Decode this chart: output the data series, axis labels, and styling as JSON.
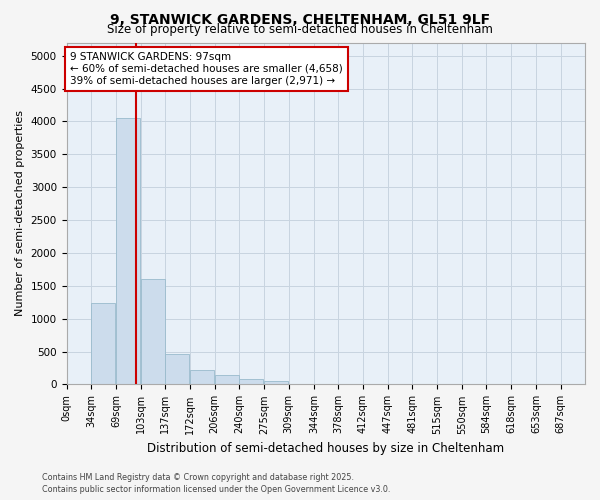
{
  "title_line1": "9, STANWICK GARDENS, CHELTENHAM, GL51 9LF",
  "title_line2": "Size of property relative to semi-detached houses in Cheltenham",
  "xlabel": "Distribution of semi-detached houses by size in Cheltenham",
  "ylabel": "Number of semi-detached properties",
  "bins": [
    "0sqm",
    "34sqm",
    "69sqm",
    "103sqm",
    "137sqm",
    "172sqm",
    "206sqm",
    "240sqm",
    "275sqm",
    "309sqm",
    "344sqm",
    "378sqm",
    "412sqm",
    "447sqm",
    "481sqm",
    "515sqm",
    "550sqm",
    "584sqm",
    "618sqm",
    "653sqm",
    "687sqm"
  ],
  "bin_edges": [
    0,
    34,
    69,
    103,
    137,
    172,
    206,
    240,
    275,
    309,
    344,
    378,
    412,
    447,
    481,
    515,
    550,
    584,
    618,
    653,
    687
  ],
  "bar_heights": [
    10,
    1240,
    4050,
    1600,
    470,
    220,
    140,
    90,
    50,
    0,
    0,
    0,
    0,
    0,
    0,
    0,
    0,
    0,
    0,
    0
  ],
  "bar_color": "#ccdcec",
  "bar_edgecolor": "#99bbcc",
  "property_size": 97,
  "vline_color": "#cc0000",
  "annotation_line1": "9 STANWICK GARDENS: 97sqm",
  "annotation_line2": "← 60% of semi-detached houses are smaller (4,658)",
  "annotation_line3": "39% of semi-detached houses are larger (2,971) →",
  "annotation_box_facecolor": "#ffffff",
  "annotation_box_edgecolor": "#cc0000",
  "ylim": [
    0,
    5200
  ],
  "yticks": [
    0,
    500,
    1000,
    1500,
    2000,
    2500,
    3000,
    3500,
    4000,
    4500,
    5000
  ],
  "footer_line1": "Contains HM Land Registry data © Crown copyright and database right 2025.",
  "footer_line2": "Contains public sector information licensed under the Open Government Licence v3.0.",
  "plot_bg_color": "#e8f0f8",
  "fig_bg_color": "#f5f5f5",
  "grid_color": "#c8d4e0"
}
